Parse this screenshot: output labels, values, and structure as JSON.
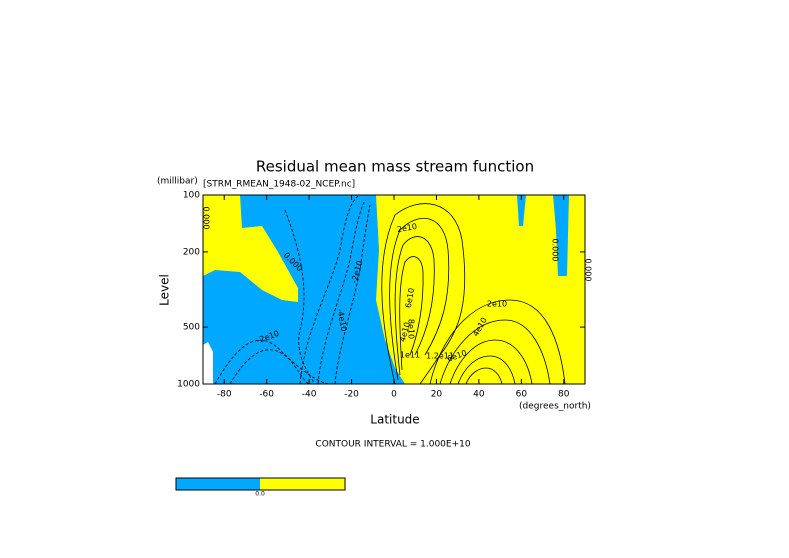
{
  "chart_data": {
    "type": "contour",
    "title": "Residual mean mass stream function",
    "subtitle": "[STRM_RMEAN_1948-02_NCEP.nc]",
    "x_label": "Latitude",
    "x_units": "(degrees_north)",
    "y_label": "Level",
    "y_units": "(millibar)",
    "xlim": [
      -90,
      90
    ],
    "xticks": [
      -80,
      -60,
      -40,
      -20,
      0,
      20,
      40,
      60,
      80
    ],
    "ylim": [
      1000,
      100
    ],
    "yticks": [
      100,
      200,
      500,
      1000
    ],
    "y_log_scale": true,
    "fill_colors": [
      "#00a8ff",
      "#ffff00"
    ],
    "contour_labels": [
      "0.000",
      "0.000",
      "0.000",
      "0.000",
      "-2e10",
      "-4e10",
      "-2e10",
      "2e10",
      "4e10",
      "6e10",
      "8e10",
      "1e11",
      "1.2e11",
      "2e10",
      "4e10",
      "6e10"
    ],
    "note": "CONTOUR INTERVAL = 1.000E+10",
    "colorbar_labels": [
      "0.0"
    ]
  }
}
